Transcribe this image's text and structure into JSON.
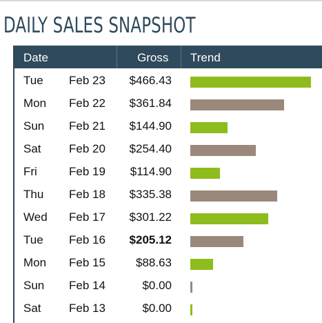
{
  "title": "DAILY SALES SNAPSHOT",
  "columns": {
    "date": "Date",
    "gross": "Gross",
    "trend": "Trend"
  },
  "colors": {
    "header_bg": "#2f4a5c",
    "bar_green": "#8fbc1d",
    "bar_taupe": "#9b887c"
  },
  "rows": [
    {
      "day": "Tue",
      "date": "Feb 23",
      "gross": "$466.43",
      "amount": 466.43,
      "color": "green",
      "bold": false
    },
    {
      "day": "Mon",
      "date": "Feb 22",
      "gross": "$361.84",
      "amount": 361.84,
      "color": "taupe",
      "bold": false
    },
    {
      "day": "Sun",
      "date": "Feb 21",
      "gross": "$144.90",
      "amount": 144.9,
      "color": "green",
      "bold": false
    },
    {
      "day": "Sat",
      "date": "Feb 20",
      "gross": "$254.40",
      "amount": 254.4,
      "color": "taupe",
      "bold": false
    },
    {
      "day": "Fri",
      "date": "Feb 19",
      "gross": "$114.90",
      "amount": 114.9,
      "color": "green",
      "bold": false
    },
    {
      "day": "Thu",
      "date": "Feb 18",
      "gross": "$335.38",
      "amount": 335.38,
      "color": "taupe",
      "bold": false
    },
    {
      "day": "Wed",
      "date": "Feb 17",
      "gross": "$301.22",
      "amount": 301.22,
      "color": "green",
      "bold": false
    },
    {
      "day": "Tue",
      "date": "Feb 16",
      "gross": "$205.12",
      "amount": 205.12,
      "color": "taupe",
      "bold": true
    },
    {
      "day": "Mon",
      "date": "Feb 15",
      "gross": "$88.63",
      "amount": 88.63,
      "color": "green",
      "bold": false
    },
    {
      "day": "Sun",
      "date": "Feb 14",
      "gross": "$0.00",
      "amount": 0.0,
      "color": "taupe",
      "bold": false
    },
    {
      "day": "Sat",
      "date": "Feb 13",
      "gross": "$0.00",
      "amount": 0.0,
      "color": "green",
      "bold": false
    }
  ]
}
